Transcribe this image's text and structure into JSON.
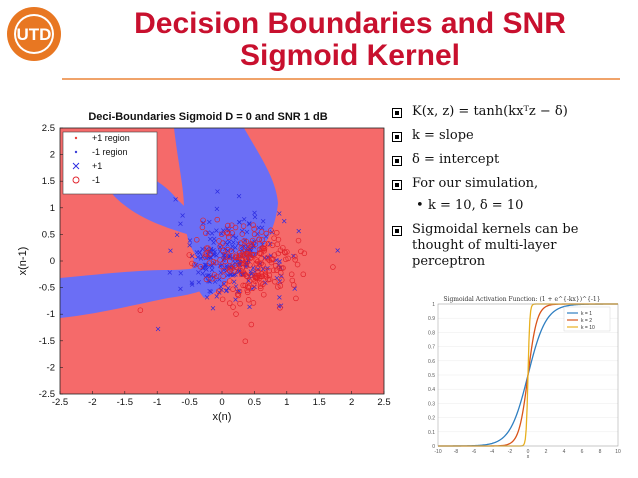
{
  "slide": {
    "title_line1": "Decision Boundaries and SNR",
    "title_line2": "Sigmoid Kernel",
    "logo_text": "UTD",
    "bullets": [
      "K(x, z) = tanh(kxᵀz − δ)",
      "k = slope",
      "δ = intercept",
      "For our simulation,",
      "Sigmoidal kernels can be thought of multi-layer perceptron"
    ],
    "sub_bullet": "k = 10, δ = 10",
    "sub_bullet_marker": "•",
    "colors": {
      "title": "#c8102e",
      "plus_region": "#f56a6a",
      "minus_region": "#6b6ef5"
    }
  },
  "chart_data": [
    {
      "type": "scatter",
      "title": "Deci-Boundaries Sigmoid D = 0 and SNR 1 dB",
      "xlabel": "x(n)",
      "ylabel": "x(n-1)",
      "xlim": [
        -2.5,
        2.5
      ],
      "ylim": [
        -2.5,
        2.5
      ],
      "xticks": [
        "-2.5",
        "-2",
        "-1.5",
        "-1",
        "-0.5",
        "0",
        "0.5",
        "1",
        "1.5",
        "2",
        "2.5"
      ],
      "yticks": [
        "2.5",
        "2",
        "1.5",
        "1",
        "0.5",
        "0",
        "-0.5",
        "-1",
        "-1.5",
        "-2",
        "-2.5"
      ],
      "legend": [
        {
          "label": "+1 region",
          "marker": "dot",
          "color": "#e8403a"
        },
        {
          "label": "-1 region",
          "marker": "dot",
          "color": "#3b3fd8"
        },
        {
          "label": "+1",
          "marker": "x",
          "color": "#2a2ae0"
        },
        {
          "label": "-1",
          "marker": "o",
          "color": "#e0202a"
        }
      ],
      "legend_position": "top-left"
    },
    {
      "type": "line",
      "title": "Sigmoidal Activation Function: (1 + e^{-kx})^{-1}",
      "xlabel": "x",
      "xlim": [
        -10,
        10
      ],
      "ylim": [
        0,
        1
      ],
      "xticks": [
        "-10",
        "-8",
        "-6",
        "-4",
        "-2",
        "0",
        "2",
        "4",
        "6",
        "8",
        "10"
      ],
      "yticks": [
        "0",
        "0.1",
        "0.2",
        "0.3",
        "0.4",
        "0.5",
        "0.6",
        "0.7",
        "0.8",
        "0.9",
        "1"
      ],
      "series": [
        {
          "name": "k = 1",
          "k": 1,
          "color": "#2f7fc1"
        },
        {
          "name": "k = 2",
          "k": 2,
          "color": "#d9541a"
        },
        {
          "name": "k = 10",
          "k": 10,
          "color": "#e8b020"
        }
      ],
      "legend_position": "top-right"
    }
  ]
}
